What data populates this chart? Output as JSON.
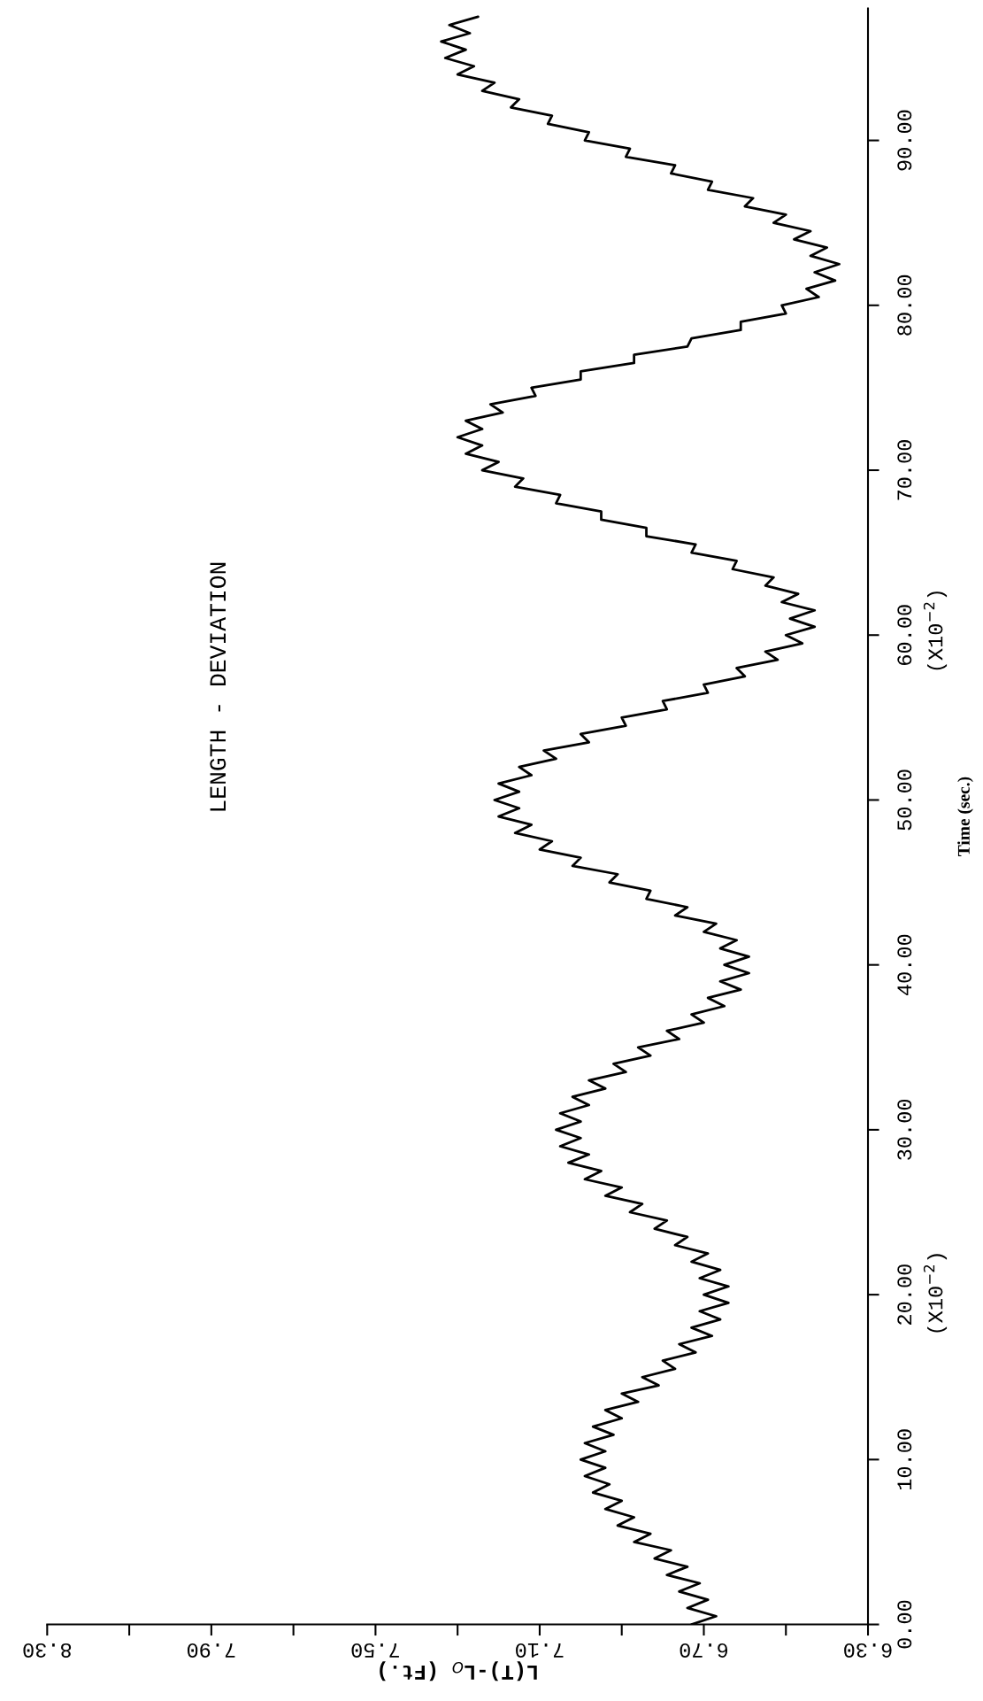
{
  "chart_data": {
    "type": "line",
    "title": "LENGTH - DEVIATION",
    "xlabel": "L(T)-L$_{O}$ (Ft.)",
    "ylabel": "Time (sec.)",
    "annotations": [
      "(X10$^{−2}$)",
      "(X10$^{−2}$)"
    ],
    "ylim": [
      0,
      98
    ],
    "yticks": [
      {
        "value": 0,
        "label": "0.00"
      },
      {
        "value": 10,
        "label": "10.00"
      },
      {
        "value": 20,
        "label": "20.00"
      },
      {
        "value": 30,
        "label": "30.00"
      },
      {
        "value": 40,
        "label": "40.00"
      },
      {
        "value": 50,
        "label": "50.00"
      },
      {
        "value": 60,
        "label": "60.00"
      },
      {
        "value": 70,
        "label": "70.00"
      },
      {
        "value": 80,
        "label": "80.00"
      },
      {
        "value": 90,
        "label": "90.00"
      }
    ],
    "xlim": [
      8.3,
      6.3
    ],
    "xticks": [
      {
        "value": 6.3,
        "label": "6.30"
      },
      {
        "value": 6.5,
        "label": null
      },
      {
        "value": 6.7,
        "label": "6.70"
      },
      {
        "value": 6.9,
        "label": null
      },
      {
        "value": 7.1,
        "label": "7.10"
      },
      {
        "value": 7.3,
        "label": null
      },
      {
        "value": 7.5,
        "label": "7.50"
      },
      {
        "value": 7.7,
        "label": null
      },
      {
        "value": 7.9,
        "label": "7.90"
      },
      {
        "value": 8.1,
        "label": null
      },
      {
        "value": 8.3,
        "label": "8.30"
      }
    ],
    "grid": false,
    "line_style": "solid",
    "marker": "none",
    "series": [
      {
        "color": "#000000",
        "values": [
          0,
          0.5,
          1,
          1.5,
          2,
          2.5,
          3,
          3.5,
          4,
          4.5,
          5,
          5.5,
          6,
          6.5,
          7,
          7.5,
          8,
          8.5,
          9,
          9.5,
          10,
          10.5,
          11,
          11.5,
          12,
          12.5,
          13,
          13.5,
          14,
          14.5,
          15,
          15.5,
          16,
          16.5,
          17,
          17.5,
          18,
          18.5,
          19,
          19.5,
          20,
          20.5,
          21,
          21.5,
          22,
          22.5,
          23,
          23.5,
          24,
          24.5,
          25,
          25.5,
          26,
          26.5,
          27,
          27.5,
          28,
          28.5,
          29,
          29.5,
          30,
          30.5,
          31,
          31.5,
          32,
          32.5,
          33,
          33.5,
          34,
          34.5,
          35,
          35.5,
          36,
          36.5,
          37,
          37.5,
          38,
          38.5,
          39,
          39.5,
          40,
          40.5,
          41,
          41.5,
          42,
          42.5,
          43,
          43.5,
          44,
          44.5,
          45,
          45.5,
          46,
          46.5,
          47,
          47.5,
          48,
          48.5,
          49,
          49.5,
          50,
          50.5,
          51,
          51.5,
          52,
          52.5,
          53,
          53.5,
          54,
          54.5,
          55,
          55.5,
          56,
          56.5,
          57,
          57.5,
          58,
          58.5,
          59,
          59.5,
          60,
          60.5,
          61,
          61.5,
          62,
          62.5,
          63,
          63.5,
          64,
          64.5,
          65,
          65.5,
          66,
          66.5,
          67,
          67.5,
          68,
          68.5,
          69,
          69.5,
          70,
          70.5,
          71,
          71.5,
          72,
          72.5,
          73,
          73.5,
          74,
          74.5,
          75,
          75.5,
          76,
          76.5,
          77,
          77.5,
          78,
          78.5,
          79,
          79.5,
          80,
          80.5,
          81,
          81.5,
          82,
          82.5,
          83,
          83.5,
          84,
          84.5,
          85,
          85.5,
          86,
          86.5,
          87,
          87.5,
          88,
          88.5,
          89,
          89.5,
          90,
          90.5,
          91,
          91.5,
          92,
          92.5,
          93,
          93.5,
          94,
          94.5,
          95,
          95.5,
          96,
          96.5,
          97,
          97.5
        ],
        "x": [
          6.73,
          6.67,
          6.74,
          6.69,
          6.76,
          6.71,
          6.79,
          6.74,
          6.82,
          6.78,
          6.87,
          6.83,
          6.91,
          6.87,
          6.94,
          6.9,
          6.97,
          6.93,
          6.99,
          6.94,
          7.0,
          6.94,
          6.99,
          6.92,
          6.97,
          6.9,
          6.94,
          6.86,
          6.9,
          6.81,
          6.85,
          6.77,
          6.8,
          6.72,
          6.76,
          6.68,
          6.73,
          6.66,
          6.71,
          6.64,
          6.7,
          6.64,
          6.71,
          6.66,
          6.73,
          6.69,
          6.77,
          6.74,
          6.82,
          6.79,
          6.88,
          6.85,
          6.94,
          6.9,
          6.99,
          6.95,
          7.03,
          6.98,
          7.05,
          7.0,
          7.06,
          7.0,
          7.05,
          6.98,
          7.02,
          6.94,
          6.98,
          6.89,
          6.92,
          6.83,
          6.86,
          6.76,
          6.79,
          6.7,
          6.73,
          6.65,
          6.69,
          6.61,
          6.66,
          6.59,
          6.65,
          6.59,
          6.66,
          6.62,
          6.7,
          6.67,
          6.77,
          6.74,
          6.84,
          6.83,
          6.93,
          6.91,
          7.02,
          7.0,
          7.1,
          7.07,
          7.16,
          7.12,
          7.2,
          7.15,
          7.21,
          7.15,
          7.2,
          7.12,
          7.15,
          7.06,
          7.09,
          6.98,
          7.0,
          6.89,
          6.9,
          6.79,
          6.8,
          6.69,
          6.7,
          6.6,
          6.62,
          6.52,
          6.55,
          6.46,
          6.5,
          6.43,
          6.49,
          6.43,
          6.51,
          6.47,
          6.55,
          6.53,
          6.63,
          6.62,
          6.73,
          6.72,
          6.84,
          6.84,
          6.95,
          6.95,
          7.06,
          7.05,
          7.16,
          7.14,
          7.24,
          7.2,
          7.28,
          7.24,
          7.3,
          7.24,
          7.28,
          7.19,
          7.22,
          7.11,
          7.12,
          7.0,
          7.0,
          6.87,
          6.87,
          6.74,
          6.73,
          6.61,
          6.61,
          6.5,
          6.51,
          6.42,
          6.45,
          6.38,
          6.43,
          6.37,
          6.44,
          6.4,
          6.48,
          6.44,
          6.53,
          6.5,
          6.6,
          6.58,
          6.69,
          6.68,
          6.78,
          6.77,
          6.89,
          6.88,
          6.99,
          6.98,
          7.08,
          7.07,
          7.17,
          7.15,
          7.24,
          7.21,
          7.3,
          7.26,
          7.33,
          7.28,
          7.34,
          7.27,
          7.32,
          7.25
        ]
      }
    ]
  }
}
